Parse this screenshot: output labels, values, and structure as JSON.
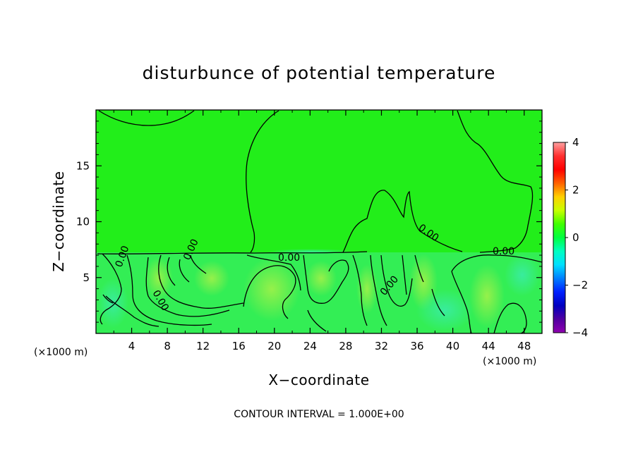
{
  "chart_data": {
    "type": "heatmap",
    "title": "disturbunce of potential temperature",
    "xlabel": "X−coordinate",
    "ylabel": "Z−coordinate",
    "x_unit_left": "(×1000 m)",
    "x_unit_right": "(×1000 m)",
    "x_ticks": [
      "4",
      "8",
      "12",
      "16",
      "20",
      "24",
      "28",
      "32",
      "36",
      "40",
      "44",
      "48"
    ],
    "y_ticks": [
      "5",
      "10",
      "15"
    ],
    "xlim": [
      0,
      50
    ],
    "ylim": [
      0,
      20
    ],
    "contour_labels": [
      "0.00",
      "0.00",
      "0.00",
      "0.00",
      "0.00",
      "0.00",
      "0.00"
    ],
    "contour_interval_text": "CONTOUR INTERVAL = 1.000E+00",
    "colorbar": {
      "ticks": [
        "4",
        "2",
        "0",
        "−2",
        "−4"
      ],
      "range": [
        -4,
        4
      ],
      "colors": [
        "#ffa0a0",
        "#ff3030",
        "#ff0000",
        "#ff6000",
        "#ffd000",
        "#c8ff00",
        "#40ff00",
        "#00ff40",
        "#00ffc0",
        "#00e0ff",
        "#0080ff",
        "#0020ff",
        "#0000c0",
        "#5000a0",
        "#9000b0"
      ]
    },
    "field_colors": {
      "upper": "#22ee1a",
      "lower_base": "#33ee55",
      "warm": "#9bf04a",
      "cool": "#3aecaa"
    }
  }
}
